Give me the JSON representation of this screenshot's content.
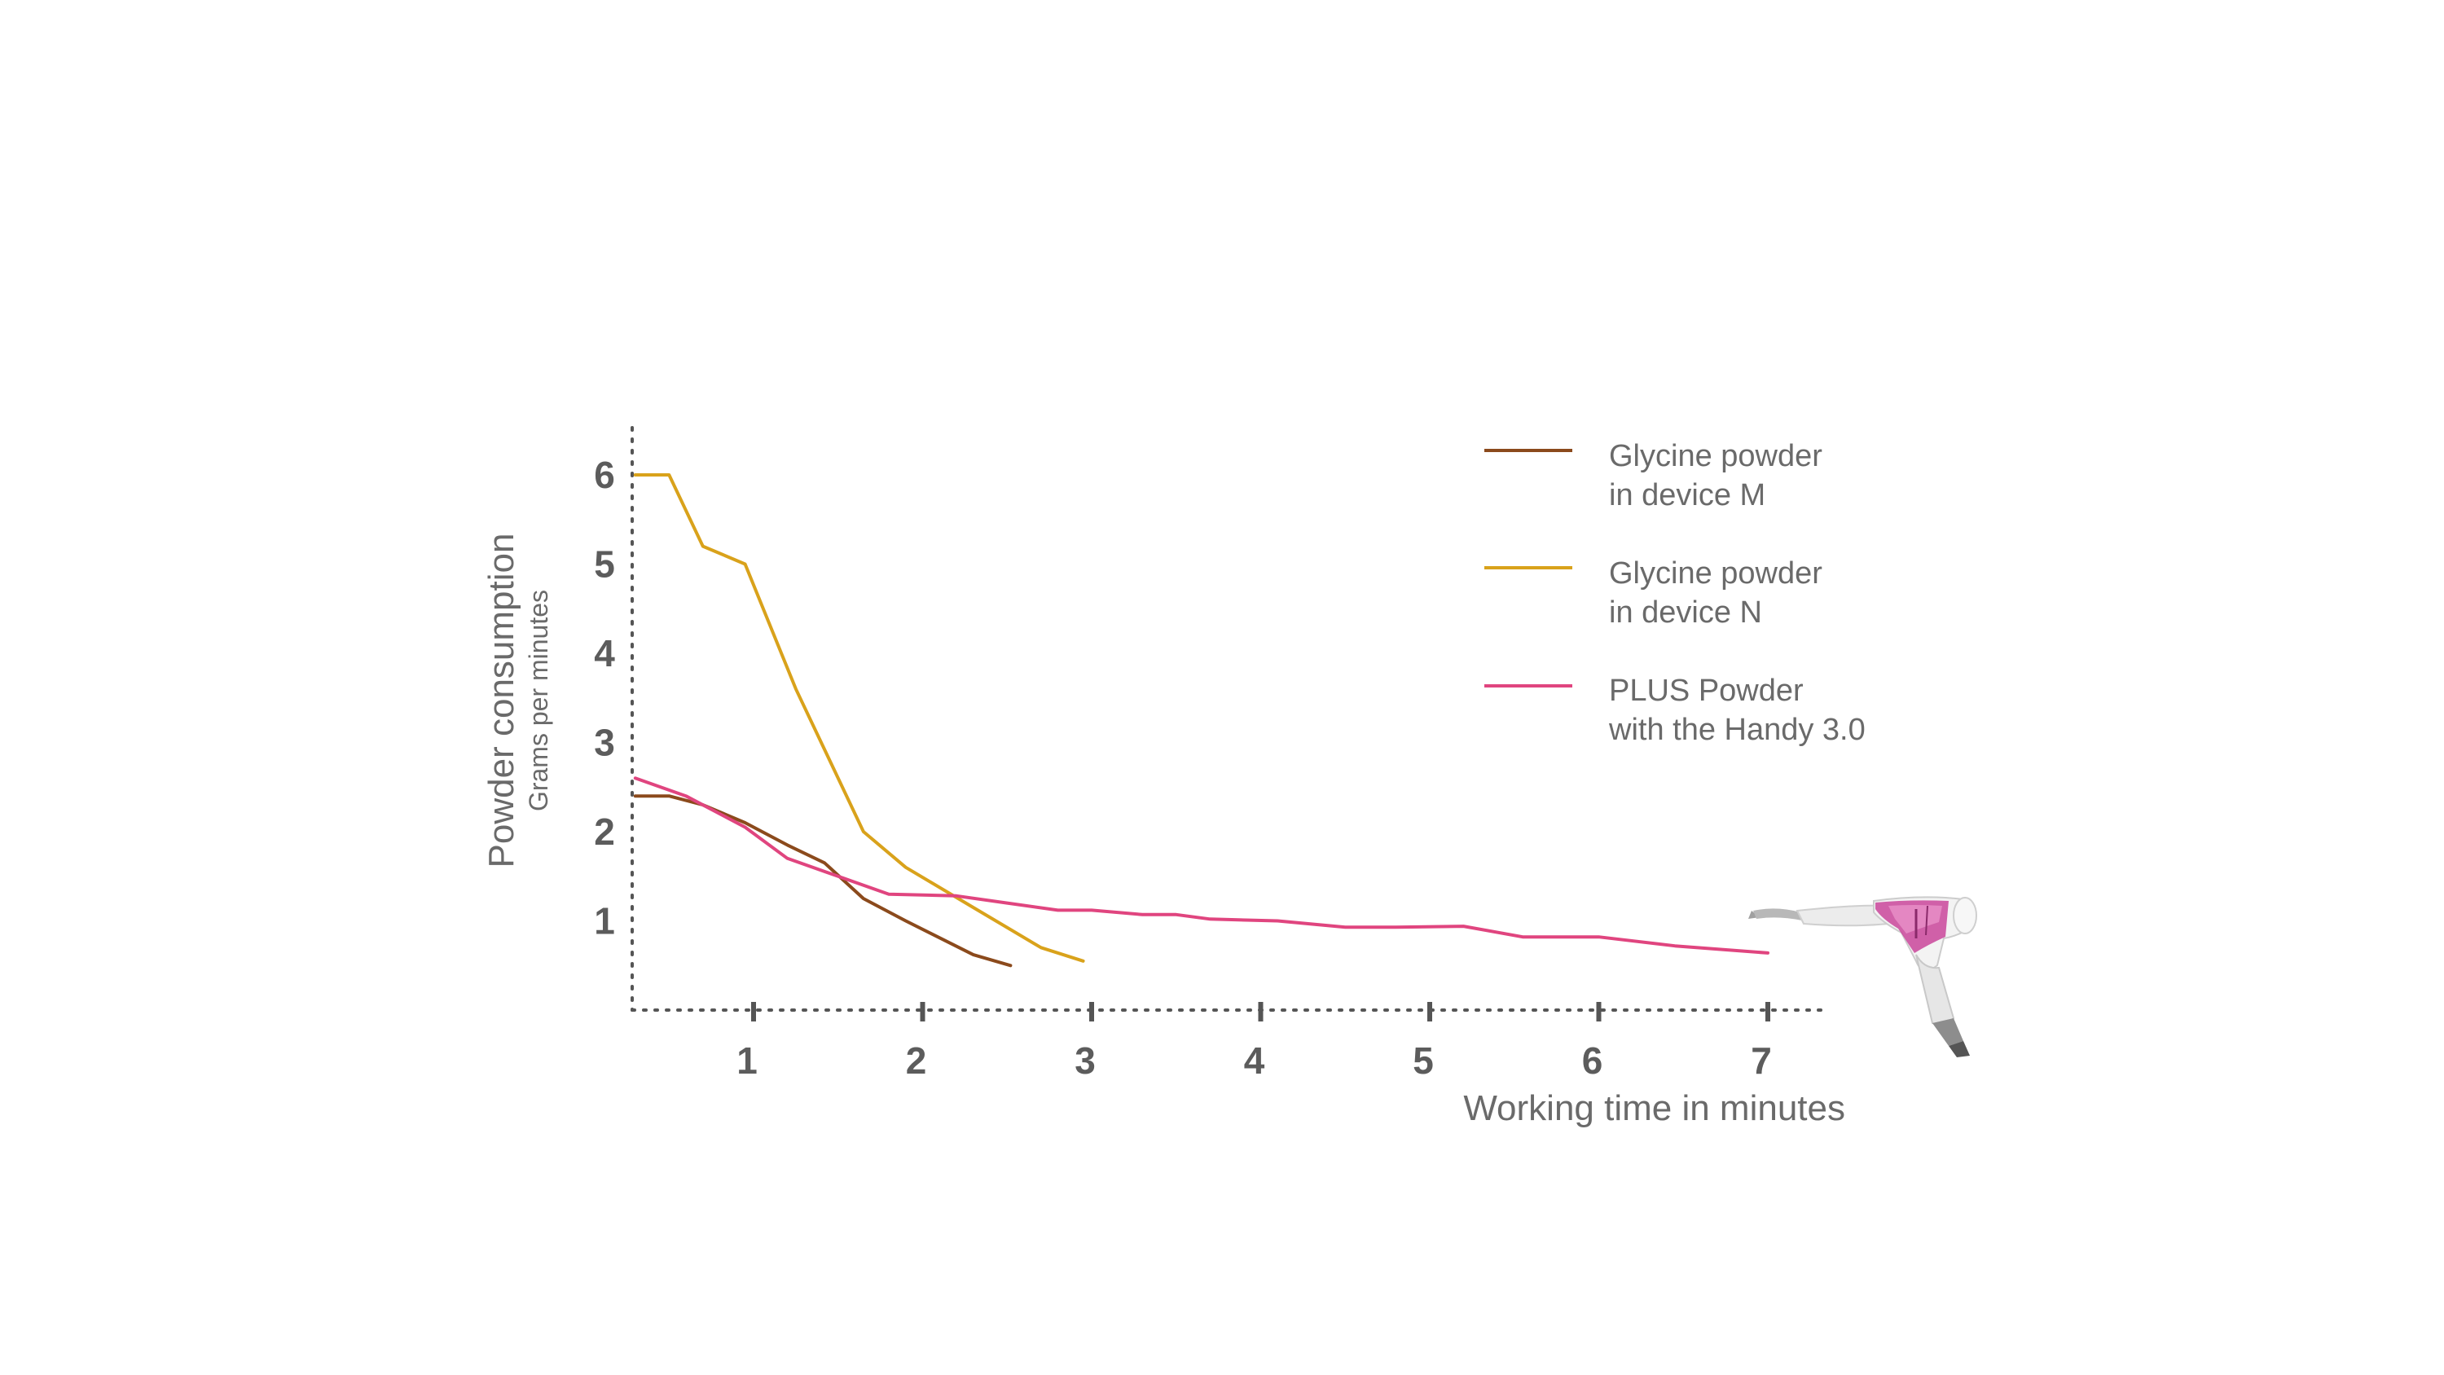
{
  "chart_data": {
    "type": "line",
    "ylabel": "Powder consumption",
    "ylabel_sub": "Grams per minutes",
    "xlabel": "Working time in minutes",
    "xlim": [
      0.3,
      7.4
    ],
    "ylim": [
      0,
      6.5
    ],
    "x_ticks": [
      "1",
      "2",
      "3",
      "4",
      "5",
      "6",
      "7"
    ],
    "y_ticks": [
      "1",
      "2",
      "3",
      "4",
      "5",
      "6"
    ],
    "legend_position": "top-right",
    "series": [
      {
        "legend_lines": [
          "Glycine powder",
          "in device M"
        ],
        "color": "#8b4a1c",
        "points": [
          [
            0.3,
            2.4
          ],
          [
            0.5,
            2.4
          ],
          [
            0.7,
            2.3
          ],
          [
            0.95,
            2.1
          ],
          [
            1.2,
            1.85
          ],
          [
            1.42,
            1.65
          ],
          [
            1.65,
            1.25
          ],
          [
            1.9,
            1.0
          ],
          [
            2.3,
            0.62
          ],
          [
            2.52,
            0.5
          ]
        ]
      },
      {
        "legend_lines": [
          "Glycine powder",
          "in device N"
        ],
        "color": "#d9a21b",
        "points": [
          [
            0.3,
            6.0
          ],
          [
            0.5,
            6.0
          ],
          [
            0.7,
            5.2
          ],
          [
            0.95,
            5.0
          ],
          [
            1.25,
            3.6
          ],
          [
            1.65,
            2.0
          ],
          [
            1.9,
            1.6
          ],
          [
            2.3,
            1.15
          ],
          [
            2.7,
            0.7
          ],
          [
            2.95,
            0.55
          ]
        ]
      },
      {
        "legend_lines": [
          "PLUS Powder",
          "with the Handy 3.0"
        ],
        "color": "#e0457f",
        "points": [
          [
            0.3,
            2.6
          ],
          [
            0.6,
            2.4
          ],
          [
            0.95,
            2.05
          ],
          [
            1.2,
            1.7
          ],
          [
            1.5,
            1.5
          ],
          [
            1.8,
            1.3
          ],
          [
            2.2,
            1.28
          ],
          [
            2.5,
            1.2
          ],
          [
            2.8,
            1.12
          ],
          [
            3.0,
            1.12
          ],
          [
            3.3,
            1.07
          ],
          [
            3.5,
            1.07
          ],
          [
            3.7,
            1.02
          ],
          [
            4.1,
            1.0
          ],
          [
            4.5,
            0.93
          ],
          [
            4.8,
            0.93
          ],
          [
            5.2,
            0.94
          ],
          [
            5.55,
            0.82
          ],
          [
            6.0,
            0.82
          ],
          [
            6.45,
            0.72
          ],
          [
            7.0,
            0.64
          ]
        ]
      }
    ]
  },
  "device_image": "dental-handpiece-illustration"
}
